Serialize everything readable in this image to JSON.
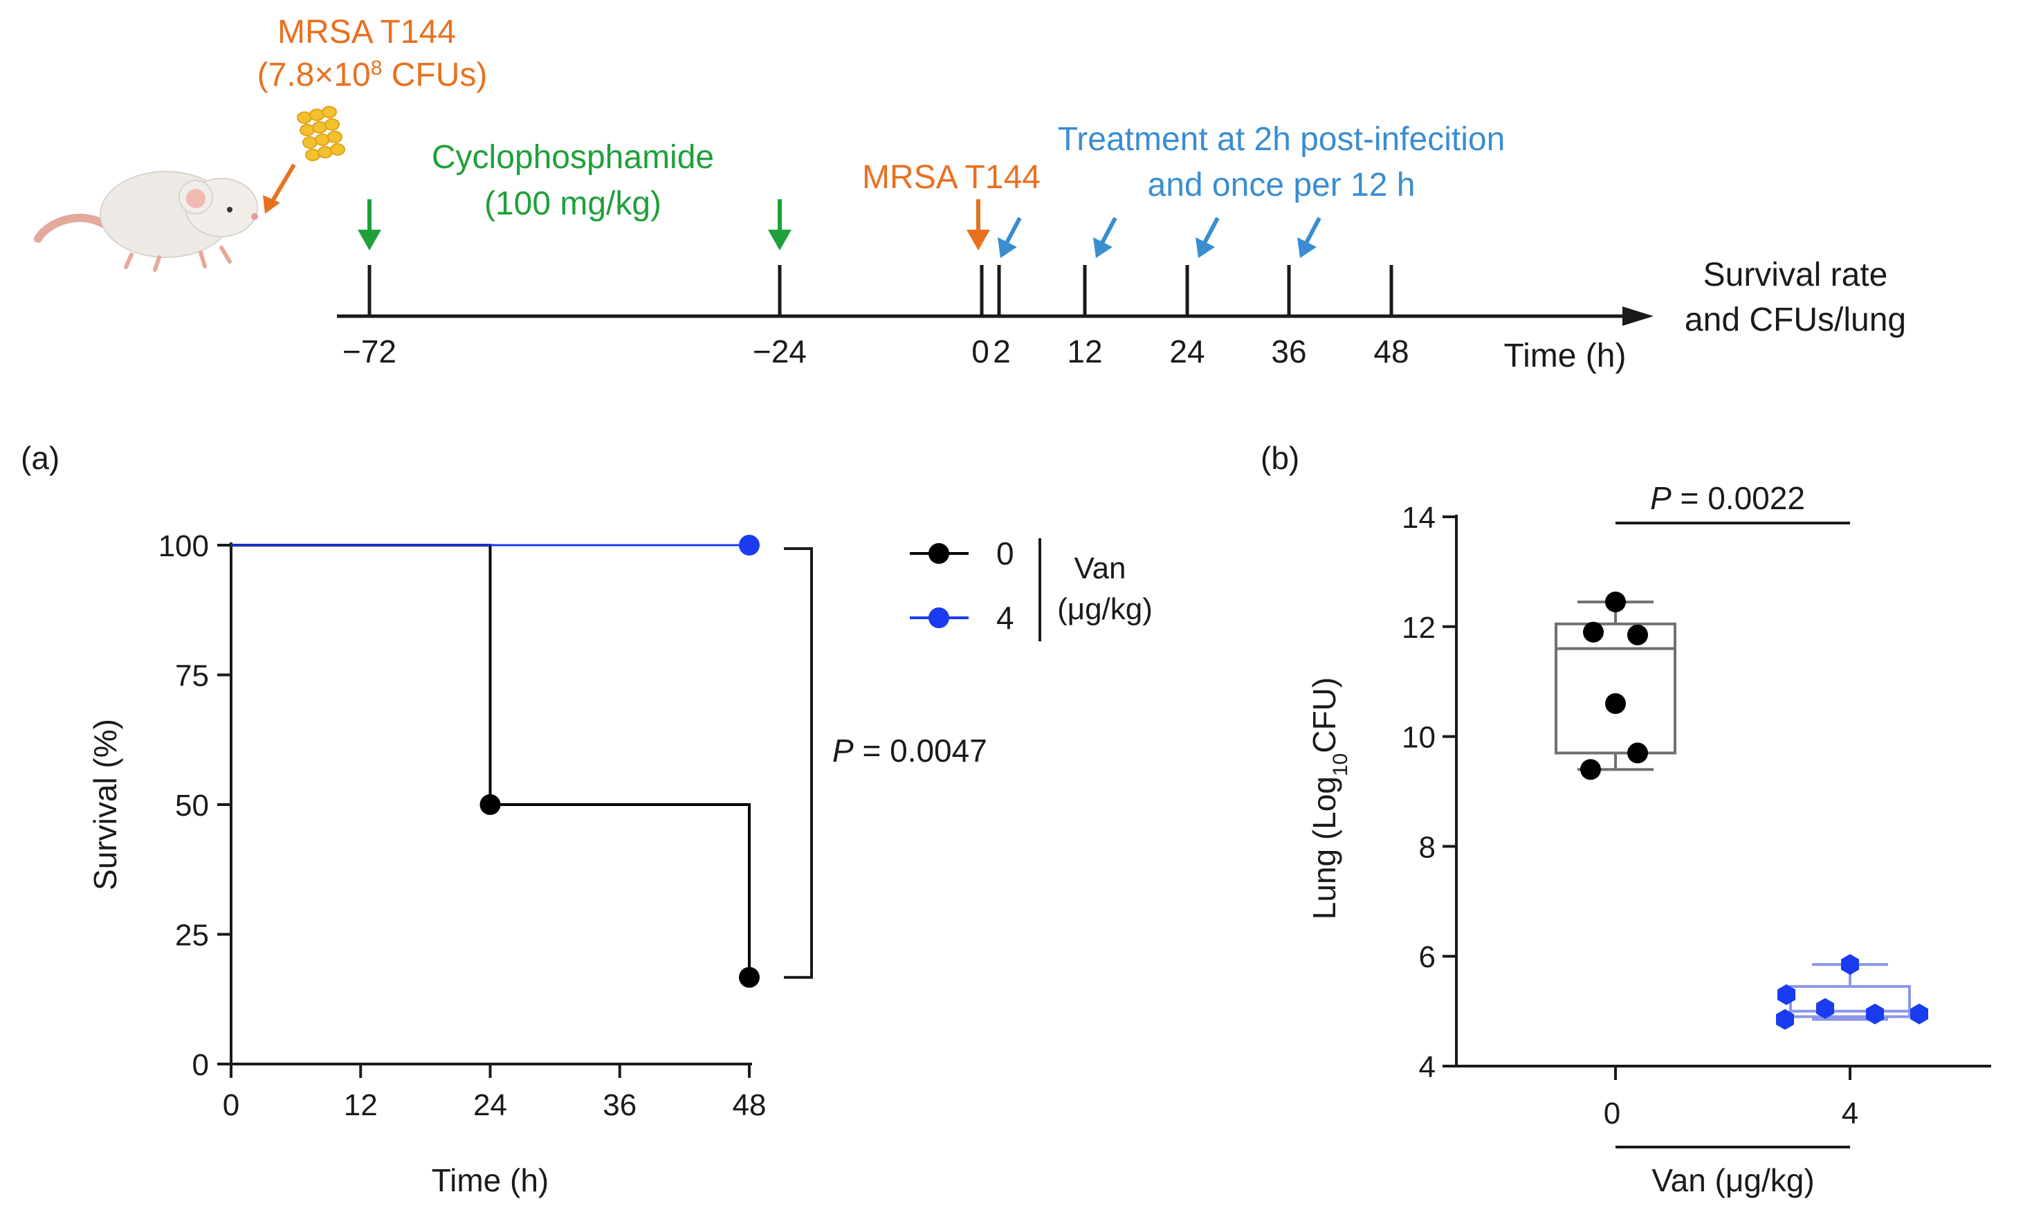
{
  "timeline": {
    "inoculum_title": "MRSA T144",
    "inoculum_dose": "(7.8×10",
    "inoculum_dose_exp": "8",
    "inoculum_dose_unit": " CFUs)",
    "drug_label": "Cyclophosphamide",
    "drug_dose": "(100 mg/kg)",
    "infection_label": "MRSA T144",
    "treatment_line1": "Treatment at 2h post-infecition",
    "treatment_line2": "and once per 12 h",
    "ticks": [
      "−72",
      "−24",
      "0",
      "2",
      "12",
      "24",
      "36",
      "48"
    ],
    "tick_values": [
      -72,
      -24,
      0,
      2,
      12,
      24,
      36,
      48
    ],
    "axis_label": "Time (h)",
    "endpoint_line1": "Survival rate",
    "endpoint_line2": "and CFUs/lung",
    "colors": {
      "orange": "#E8711F",
      "green": "#1FA03A",
      "blue": "#3A8DD0"
    }
  },
  "panel_a_label": "(a)",
  "panel_b_label": "(b)",
  "chart_data": [
    {
      "type": "line",
      "style": "step",
      "panel": "(a)",
      "title": "",
      "xlabel": "Time (h)",
      "ylabel": "Survival (%)",
      "xlim": [
        0,
        48
      ],
      "ylim": [
        0,
        100
      ],
      "xticks": [
        0,
        12,
        24,
        36,
        48
      ],
      "yticks": [
        0,
        25,
        50,
        75,
        100
      ],
      "xtick_labels": [
        "0",
        "12",
        "24",
        "36",
        "48"
      ],
      "ytick_labels": [
        "0",
        "25",
        "50",
        "75",
        "100"
      ],
      "legend_title": "Van",
      "legend_unit": "(μg/kg)",
      "legend_position": "top-right",
      "series": [
        {
          "name": "0",
          "color": "#000000",
          "steps": [
            [
              0,
              100
            ],
            [
              24,
              100
            ],
            [
              24,
              50
            ],
            [
              48,
              50
            ],
            [
              48,
              16.7
            ]
          ],
          "markers": [
            [
              24,
              50
            ],
            [
              48,
              16.7
            ]
          ]
        },
        {
          "name": "4",
          "color": "#1A3BF0",
          "steps": [
            [
              0,
              100
            ],
            [
              48,
              100
            ]
          ],
          "markers": [
            [
              48,
              100
            ]
          ]
        }
      ],
      "annotation": {
        "prefix": "P",
        "text": " = 0.0047"
      }
    },
    {
      "type": "box",
      "panel": "(b)",
      "title": "",
      "xlabel": "Van (μg/kg)",
      "ylabel_prefix": "Lung (Log",
      "ylabel_sub": "10",
      "ylabel_suffix": "CFU)",
      "ylim": [
        4,
        14
      ],
      "yticks": [
        4,
        6,
        8,
        10,
        12,
        14
      ],
      "ytick_labels": [
        "4",
        "6",
        "8",
        "10",
        "12",
        "14"
      ],
      "categories": [
        "0",
        "4"
      ],
      "series": [
        {
          "name": "0",
          "color": "#000000",
          "box_color": "#707070",
          "marker": "circle",
          "min": 9.4,
          "q1": 9.7,
          "median": 11.6,
          "q3": 12.05,
          "max": 12.45,
          "points": [
            12.45,
            11.9,
            11.85,
            10.6,
            9.7,
            9.4
          ]
        },
        {
          "name": "4",
          "color": "#1A3BF0",
          "box_color": "#8C97E8",
          "marker": "hexagon",
          "min": 4.85,
          "q1": 4.9,
          "median": 5.0,
          "q3": 5.45,
          "max": 5.85,
          "points": [
            5.85,
            5.3,
            5.05,
            4.95,
            4.95,
            4.85
          ]
        }
      ],
      "annotation": {
        "prefix": "P",
        "text": " = 0.0022"
      }
    }
  ]
}
